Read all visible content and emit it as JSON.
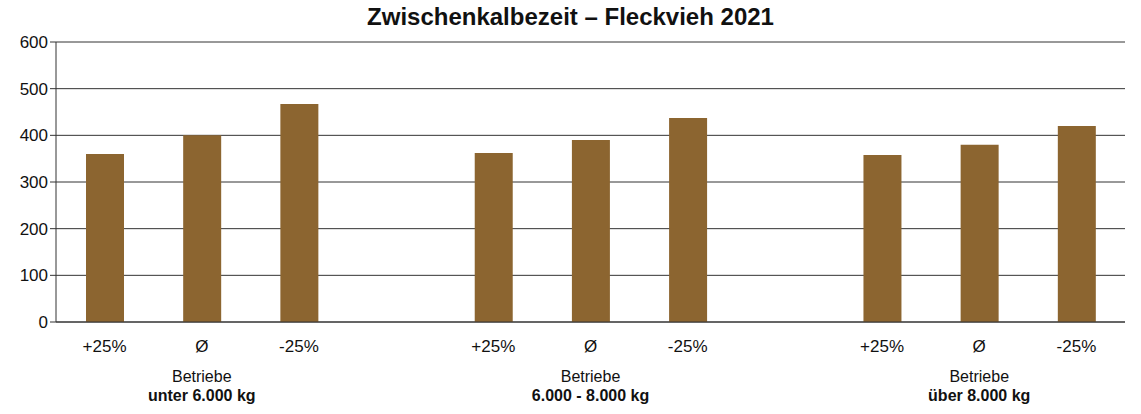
{
  "chart_data": {
    "type": "bar",
    "title": "Zwischenkalbezeit – Fleckvieh 2021",
    "categories": [
      "+25%",
      "Ø",
      "-25%",
      null,
      "+25%",
      "Ø",
      "-25%",
      null,
      "+25%",
      "Ø",
      "-25%"
    ],
    "values": [
      360,
      400,
      467,
      null,
      362,
      390,
      437,
      null,
      358,
      380,
      420
    ],
    "groups": [
      {
        "label": "Betriebe",
        "name": "unter 6.000 kg"
      },
      {
        "label": "Betriebe",
        "name": "6.000 - 8.000 kg"
      },
      {
        "label": "Betriebe",
        "name": "über 8.000 kg"
      }
    ],
    "color": "#8c6530",
    "ylim": [
      0,
      600
    ],
    "yticks": [
      0,
      100,
      200,
      300,
      400,
      500,
      600
    ],
    "grid": true
  }
}
